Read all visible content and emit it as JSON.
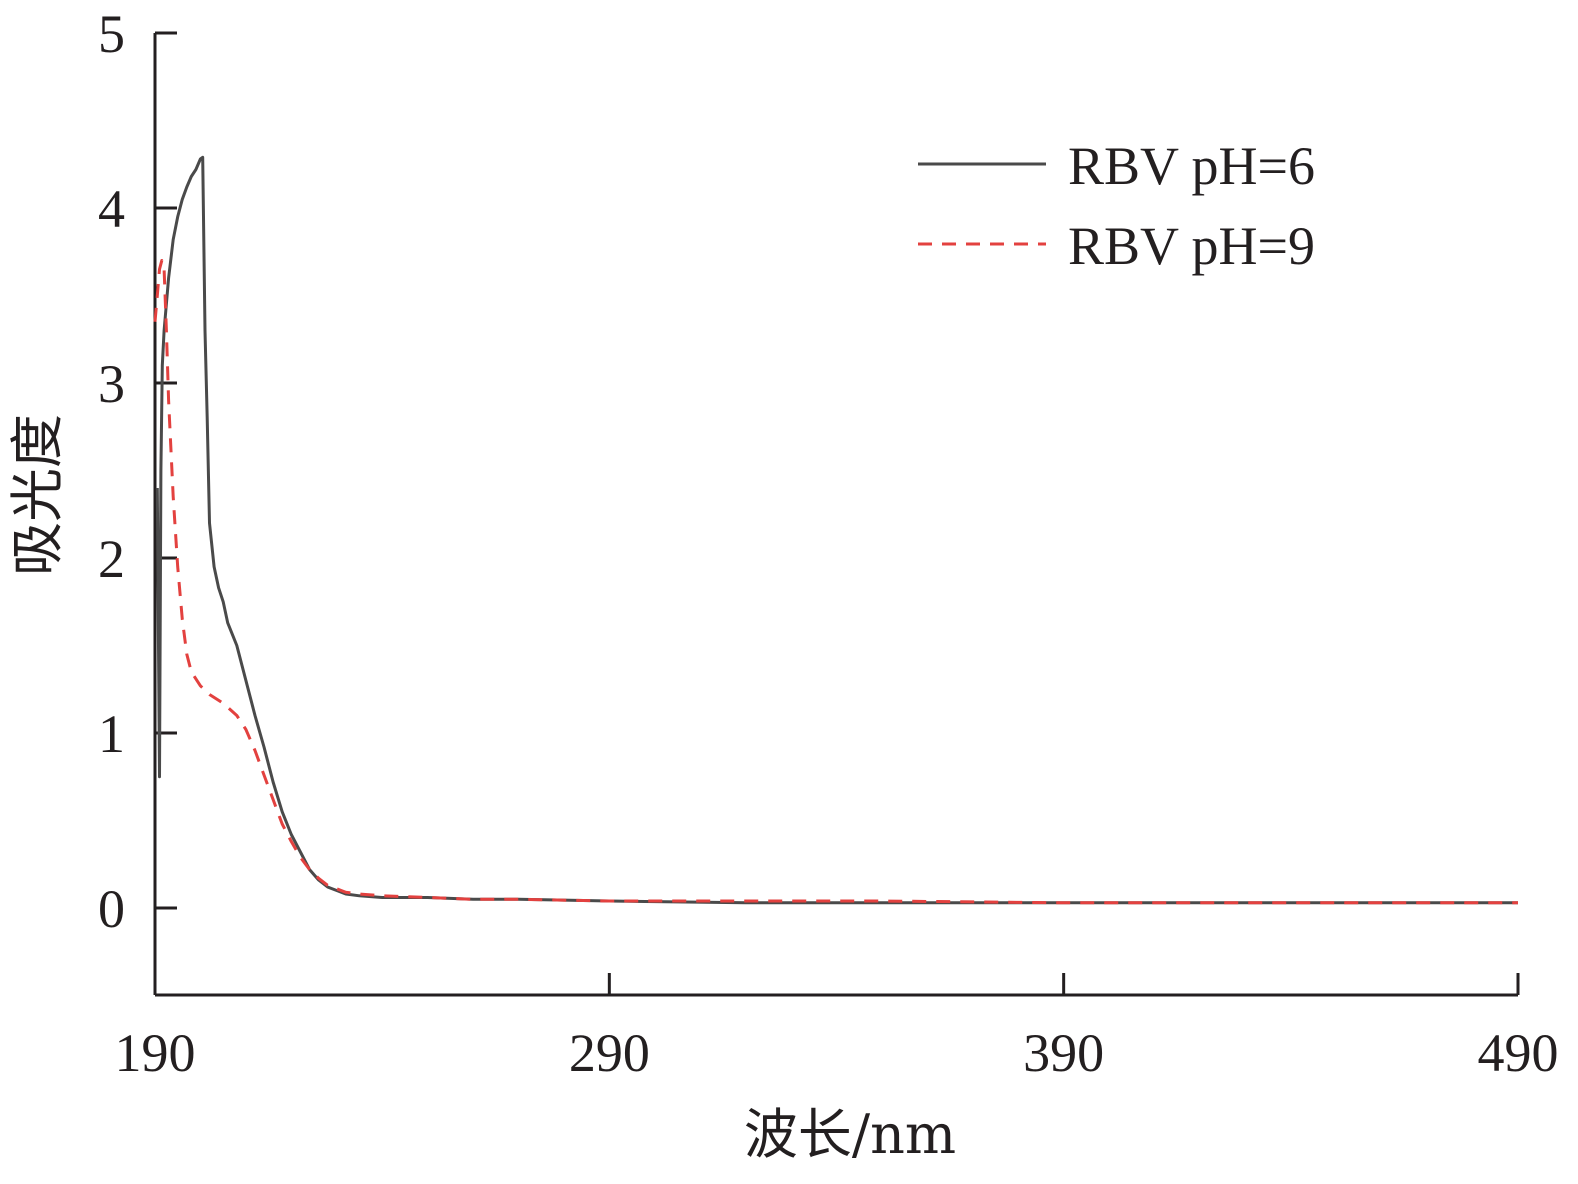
{
  "chart_data": {
    "type": "line",
    "title": "",
    "xlabel": "波长/nm",
    "ylabel": "吸光度",
    "xlim": [
      190,
      490
    ],
    "ylim": [
      -0.5,
      5
    ],
    "xticks": [
      190,
      290,
      390,
      490
    ],
    "xtick_labels": [
      "190",
      "290",
      "390",
      "490"
    ],
    "yticks": [
      0,
      1,
      2,
      3,
      4,
      5
    ],
    "ytick_labels": [
      "0",
      "1",
      "2",
      "3",
      "4",
      "5"
    ],
    "grid": false,
    "legend_position": "top-right",
    "series": [
      {
        "name": "RBV pH=6",
        "color": "#4a4a4a",
        "dash": "solid",
        "x": [
          190.5,
          191.0,
          191.3,
          191.6,
          192,
          193,
          194,
          195,
          196,
          197,
          198,
          199,
          200,
          200.5,
          201,
          201.5,
          202,
          203,
          204,
          205,
          206,
          208,
          210,
          212,
          214,
          216,
          218,
          220,
          222,
          224,
          226,
          228,
          230,
          232,
          235,
          240,
          250,
          260,
          270,
          290,
          320,
          350,
          390,
          420,
          450,
          490
        ],
        "y": [
          2.4,
          0.75,
          2.5,
          3.1,
          3.3,
          3.6,
          3.82,
          3.95,
          4.05,
          4.12,
          4.18,
          4.22,
          4.28,
          4.29,
          3.3,
          2.8,
          2.2,
          1.95,
          1.83,
          1.75,
          1.63,
          1.5,
          1.3,
          1.1,
          0.92,
          0.72,
          0.55,
          0.42,
          0.32,
          0.22,
          0.16,
          0.12,
          0.1,
          0.08,
          0.07,
          0.06,
          0.06,
          0.05,
          0.05,
          0.04,
          0.03,
          0.03,
          0.03,
          0.03,
          0.03,
          0.03
        ]
      },
      {
        "name": "RBV pH=9",
        "color": "#e3413f",
        "dash": "dashed",
        "x": [
          190,
          190.5,
          191,
          191.5,
          192,
          192.5,
          193,
          194,
          195,
          196,
          197,
          198,
          200,
          202,
          205,
          208,
          210,
          212,
          214,
          216,
          218,
          220,
          222,
          224,
          226,
          228,
          230,
          232,
          235,
          240,
          250,
          260,
          270,
          290,
          320,
          350,
          390,
          420,
          450,
          490
        ],
        "y": [
          3.35,
          3.5,
          3.65,
          3.7,
          3.65,
          3.3,
          2.9,
          2.35,
          1.95,
          1.65,
          1.45,
          1.35,
          1.27,
          1.22,
          1.17,
          1.1,
          1.02,
          0.9,
          0.76,
          0.62,
          0.48,
          0.38,
          0.29,
          0.22,
          0.17,
          0.13,
          0.11,
          0.09,
          0.08,
          0.07,
          0.06,
          0.05,
          0.05,
          0.04,
          0.04,
          0.04,
          0.03,
          0.03,
          0.03,
          0.03
        ]
      }
    ]
  }
}
